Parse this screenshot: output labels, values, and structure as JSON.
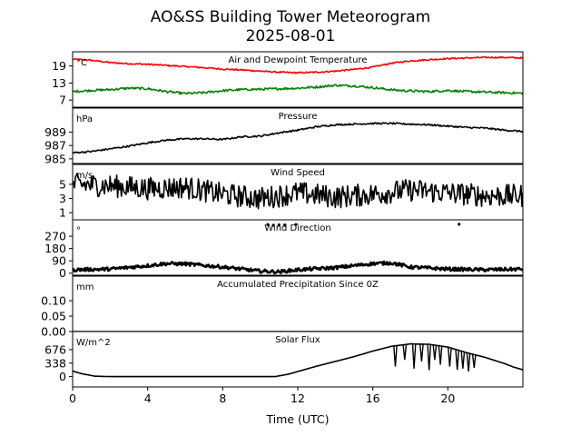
{
  "figure": {
    "title_line1": "AO&SS Building Tower Meteorogram",
    "title_line2": "2025-08-01",
    "xlabel": "Time (UTC)"
  },
  "chart_data": {
    "type": "line",
    "x_range": [
      0,
      24
    ],
    "x_ticks": [
      0,
      4,
      8,
      12,
      16,
      20
    ],
    "x_tick_labels": [
      "0",
      "4",
      "8",
      "12",
      "16",
      "20"
    ],
    "panels": [
      {
        "id": "temp",
        "title": "Air and Dewpoint Temperature",
        "unit": "°C",
        "ylim": [
          4.5,
          24
        ],
        "yticks": [
          7,
          13,
          19
        ],
        "ytick_labels": [
          "7",
          "13",
          "19"
        ],
        "series": [
          {
            "name": "Air Temperature",
            "color": "#ff0000",
            "noise": 0.25,
            "x": [
              0,
              1,
              2,
              3,
              4,
              5,
              6,
              7,
              8,
              9,
              10,
              11,
              12,
              13,
              14,
              15,
              16,
              17,
              18,
              19,
              20,
              21,
              22,
              23,
              24
            ],
            "y": [
              21.4,
              21.0,
              20.2,
              19.8,
              19.6,
              19.2,
              18.8,
              18.4,
              17.9,
              17.6,
              17.2,
              16.8,
              16.6,
              16.8,
              17.2,
              17.8,
              18.6,
              20.0,
              20.8,
              21.2,
              21.6,
              21.8,
              22.0,
              22.0,
              21.8
            ]
          },
          {
            "name": "Dewpoint",
            "color": "#008000",
            "noise": 0.4,
            "x": [
              0,
              1,
              2,
              3,
              4,
              5,
              6,
              7,
              8,
              9,
              10,
              11,
              12,
              13,
              14,
              15,
              16,
              17,
              18,
              19,
              20,
              21,
              22,
              23,
              24
            ],
            "y": [
              10.0,
              10.4,
              10.7,
              11.2,
              11.0,
              10.0,
              9.3,
              9.6,
              10.3,
              10.7,
              10.8,
              11.0,
              11.2,
              11.6,
              12.2,
              12.0,
              11.4,
              10.6,
              10.2,
              10.0,
              10.4,
              10.0,
              9.8,
              9.6,
              9.4
            ]
          }
        ]
      },
      {
        "id": "pres",
        "title": "Pressure",
        "unit": "hPa",
        "ylim": [
          984.3,
          992.6
        ],
        "yticks": [
          985,
          987,
          989
        ],
        "ytick_labels": [
          "985",
          "987",
          "989"
        ],
        "series": [
          {
            "name": "Pressure",
            "color": "#000000",
            "noise": 0.12,
            "x": [
              0,
              1,
              2,
              3,
              4,
              5,
              6,
              7,
              8,
              9,
              10,
              11,
              12,
              13,
              14,
              15,
              16,
              17,
              18,
              19,
              20,
              21,
              22,
              23,
              24
            ],
            "y": [
              985.9,
              986.1,
              986.5,
              986.9,
              987.4,
              987.8,
              988.0,
              988.0,
              987.9,
              988.3,
              988.4,
              988.9,
              989.3,
              989.8,
              990.1,
              990.2,
              990.3,
              990.3,
              990.2,
              990.1,
              989.9,
              989.7,
              989.6,
              989.3,
              989.1
            ]
          }
        ]
      },
      {
        "id": "wspd",
        "title": "Wind Speed",
        "unit": "m/s",
        "ylim": [
          0,
          7.8
        ],
        "yticks": [
          1,
          3,
          5
        ],
        "ytick_labels": [
          "1",
          "3",
          "5"
        ],
        "series": [
          {
            "name": "Wind Speed",
            "color": "#000000",
            "noise": 1.6,
            "x": [
              0,
              2,
              4,
              6,
              8,
              10,
              12,
              14,
              16,
              18,
              20,
              22,
              24
            ],
            "y": [
              5.0,
              4.8,
              4.4,
              4.6,
              3.6,
              3.0,
              3.8,
              3.2,
              3.6,
              4.2,
              3.8,
              3.4,
              3.4
            ]
          }
        ]
      },
      {
        "id": "wdir",
        "title": "Wind Direction",
        "unit": "°",
        "ylim": [
          -15,
          390
        ],
        "yticks": [
          0,
          90,
          180,
          270
        ],
        "ytick_labels": [
          "0",
          "90",
          "180",
          "270"
        ],
        "series": [
          {
            "name": "Wind Direction",
            "color": "#000000",
            "noise": 12,
            "markers": true,
            "x": [
              0,
              2,
              4,
              5,
              6,
              8,
              10,
              11,
              12,
              14,
              16,
              17,
              18,
              20,
              22,
              24
            ],
            "y": [
              25,
              30,
              55,
              70,
              68,
              45,
              15,
              10,
              25,
              40,
              70,
              75,
              45,
              30,
              25,
              30
            ]
          }
        ],
        "outliers": {
          "x": [
            10.4,
            10.7,
            11.0,
            11.3,
            11.9,
            20.6
          ],
          "y": [
            355,
            350,
            353,
            352,
            355,
            358
          ]
        }
      },
      {
        "id": "precip",
        "title": "Accumulated Precipitation Since 0Z",
        "unit": "mm",
        "ylim": [
          0,
          0.18
        ],
        "yticks": [
          0.0,
          0.05,
          0.1
        ],
        "ytick_labels": [
          "0.00",
          "0.05",
          "0.10"
        ],
        "series": [
          {
            "name": "Accumulated Precipitation",
            "color": "#000000",
            "noise": 0,
            "x": [
              0,
              24
            ],
            "y": [
              0,
              0
            ]
          }
        ]
      },
      {
        "id": "solar",
        "title": "Solar Flux",
        "unit": "W/m^2",
        "ylim": [
          -260,
          1130
        ],
        "yticks": [
          0,
          338,
          676
        ],
        "ytick_labels": [
          "0",
          "338",
          "676"
        ],
        "series": [
          {
            "name": "Solar Flux",
            "color": "#000000",
            "noise": 0,
            "x": [
              0,
              0.5,
              1.2,
              2,
              10.8,
              11.5,
              13,
              15,
              16,
              17,
              18,
              19,
              20,
              21,
              22,
              23,
              23.5,
              24
            ],
            "y": [
              140,
              70,
              10,
              0,
              0,
              60,
              260,
              500,
              640,
              760,
              820,
              810,
              740,
              600,
              480,
              330,
              240,
              170
            ]
          }
        ],
        "dropouts": [
          {
            "x": 17.2,
            "y": 250
          },
          {
            "x": 17.7,
            "y": 420
          },
          {
            "x": 18.2,
            "y": 200
          },
          {
            "x": 18.6,
            "y": 380
          },
          {
            "x": 19.0,
            "y": 160
          },
          {
            "x": 19.3,
            "y": 420
          },
          {
            "x": 19.6,
            "y": 300
          },
          {
            "x": 20.1,
            "y": 250
          },
          {
            "x": 20.5,
            "y": 170
          },
          {
            "x": 20.8,
            "y": 200
          },
          {
            "x": 21.1,
            "y": 130
          },
          {
            "x": 21.4,
            "y": 220
          }
        ]
      }
    ]
  }
}
